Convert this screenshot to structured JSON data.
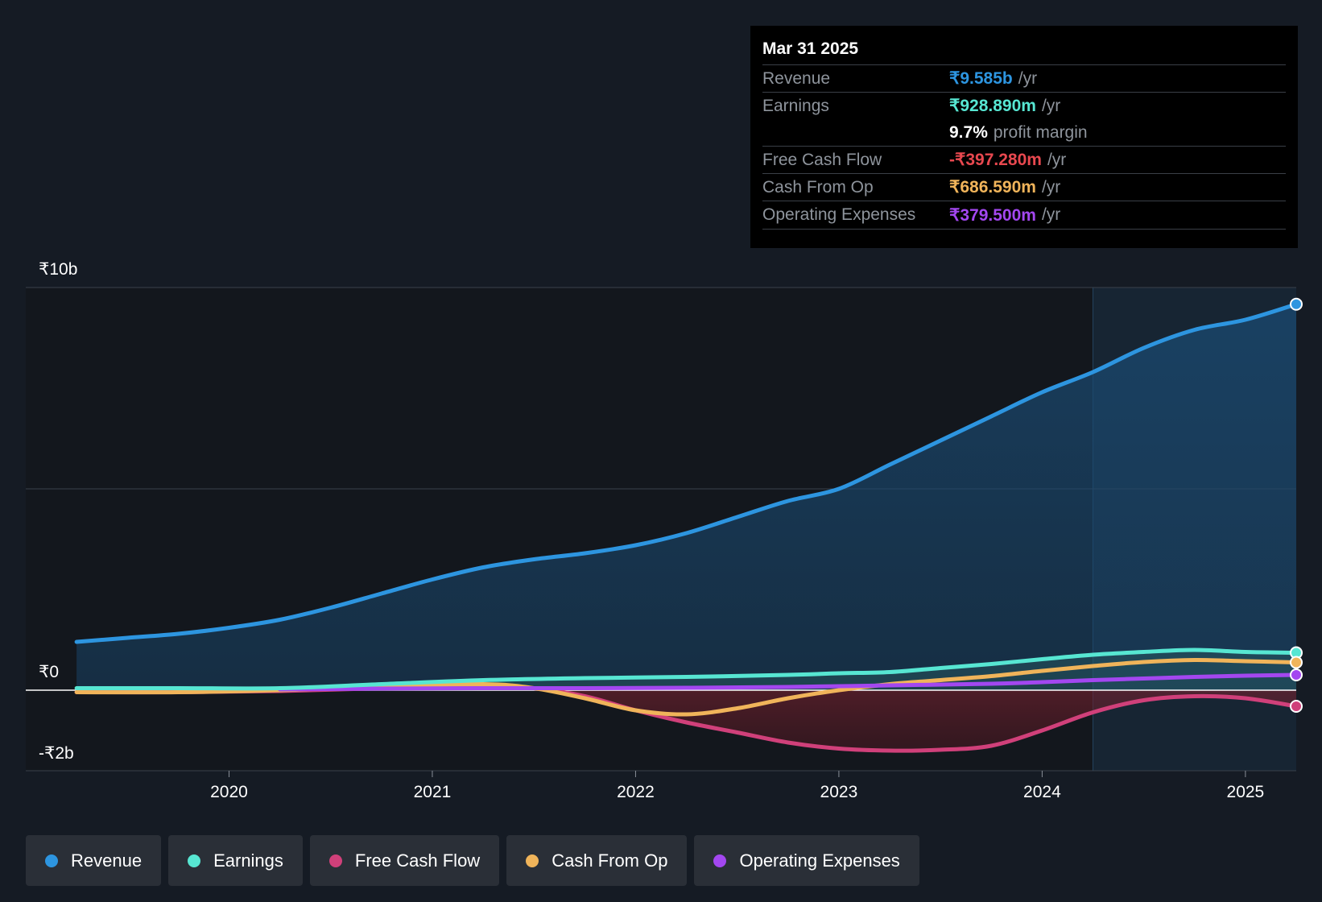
{
  "tooltip": {
    "date": "Mar 31 2025",
    "rows": [
      {
        "label": "Revenue",
        "value": "₹9.585b",
        "unit": "/yr",
        "color": "#2d95e0"
      },
      {
        "label": "Earnings",
        "value": "₹928.890m",
        "unit": "/yr",
        "color": "#57e6d2"
      },
      {
        "label": "",
        "value": "9.7%",
        "unit": "profit margin",
        "color": "#ffffff"
      },
      {
        "label": "Free Cash Flow",
        "value": "-₹397.280m",
        "unit": "/yr",
        "color": "#e8484f"
      },
      {
        "label": "Cash From Op",
        "value": "₹686.590m",
        "unit": "/yr",
        "color": "#f0b45a"
      },
      {
        "label": "Operating Expenses",
        "value": "₹379.500m",
        "unit": "/yr",
        "color": "#a347f0"
      }
    ]
  },
  "legend": [
    {
      "label": "Revenue",
      "color": "#2d95e0"
    },
    {
      "label": "Earnings",
      "color": "#57e6d2"
    },
    {
      "label": "Free Cash Flow",
      "color": "#d0407a"
    },
    {
      "label": "Cash From Op",
      "color": "#f0b45a"
    },
    {
      "label": "Operating Expenses",
      "color": "#a347f0"
    }
  ],
  "chart_data": {
    "type": "line",
    "y_unit": "₹ billion",
    "ylim": [
      -2,
      10
    ],
    "xlim": [
      2019.0,
      2025.25
    ],
    "y_tick_labels": [
      {
        "value": 10,
        "label": "₹10b"
      },
      {
        "value": 0,
        "label": "₹0"
      },
      {
        "value": -2,
        "label": "-₹2b"
      }
    ],
    "x_ticks": [
      2020,
      2021,
      2022,
      2023,
      2024,
      2025
    ],
    "x_tick_labels": [
      "2020",
      "2021",
      "2022",
      "2023",
      "2024",
      "2025"
    ],
    "grid": true,
    "highlight_start": 2024.25,
    "series": [
      {
        "name": "Revenue",
        "color": "#2d95e0",
        "area": true,
        "points": [
          [
            2019.25,
            1.2
          ],
          [
            2019.5,
            1.3
          ],
          [
            2019.75,
            1.4
          ],
          [
            2020.0,
            1.55
          ],
          [
            2020.25,
            1.75
          ],
          [
            2020.5,
            2.05
          ],
          [
            2020.75,
            2.4
          ],
          [
            2021.0,
            2.75
          ],
          [
            2021.25,
            3.05
          ],
          [
            2021.5,
            3.25
          ],
          [
            2021.75,
            3.4
          ],
          [
            2022.0,
            3.6
          ],
          [
            2022.25,
            3.9
          ],
          [
            2022.5,
            4.3
          ],
          [
            2022.75,
            4.7
          ],
          [
            2023.0,
            5.0
          ],
          [
            2023.25,
            5.6
          ],
          [
            2023.5,
            6.2
          ],
          [
            2023.75,
            6.8
          ],
          [
            2024.0,
            7.4
          ],
          [
            2024.25,
            7.9
          ],
          [
            2024.5,
            8.5
          ],
          [
            2024.75,
            8.95
          ],
          [
            2025.0,
            9.2
          ],
          [
            2025.25,
            9.585
          ]
        ]
      },
      {
        "name": "Earnings",
        "color": "#57e6d2",
        "points": [
          [
            2019.25,
            0.05
          ],
          [
            2019.75,
            0.05
          ],
          [
            2020.25,
            0.05
          ],
          [
            2020.75,
            0.15
          ],
          [
            2021.25,
            0.25
          ],
          [
            2021.75,
            0.3
          ],
          [
            2022.25,
            0.33
          ],
          [
            2022.75,
            0.38
          ],
          [
            2023.0,
            0.42
          ],
          [
            2023.25,
            0.45
          ],
          [
            2023.5,
            0.55
          ],
          [
            2023.75,
            0.65
          ],
          [
            2024.0,
            0.77
          ],
          [
            2024.25,
            0.88
          ],
          [
            2024.5,
            0.95
          ],
          [
            2024.75,
            1.0
          ],
          [
            2025.0,
            0.95
          ],
          [
            2025.25,
            0.93
          ]
        ]
      },
      {
        "name": "Free Cash Flow",
        "color": "#d0407a",
        "area": true,
        "points": [
          [
            2019.25,
            -0.05
          ],
          [
            2019.75,
            -0.05
          ],
          [
            2020.25,
            -0.02
          ],
          [
            2020.75,
            0.05
          ],
          [
            2021.25,
            0.1
          ],
          [
            2021.5,
            0.05
          ],
          [
            2021.75,
            -0.15
          ],
          [
            2022.0,
            -0.5
          ],
          [
            2022.25,
            -0.8
          ],
          [
            2022.5,
            -1.05
          ],
          [
            2022.75,
            -1.3
          ],
          [
            2023.0,
            -1.45
          ],
          [
            2023.25,
            -1.5
          ],
          [
            2023.5,
            -1.48
          ],
          [
            2023.75,
            -1.38
          ],
          [
            2024.0,
            -1.0
          ],
          [
            2024.25,
            -0.55
          ],
          [
            2024.5,
            -0.25
          ],
          [
            2024.75,
            -0.15
          ],
          [
            2025.0,
            -0.2
          ],
          [
            2025.25,
            -0.4
          ]
        ]
      },
      {
        "name": "Cash From Op",
        "color": "#f0b45a",
        "area": true,
        "points": [
          [
            2019.25,
            -0.05
          ],
          [
            2019.75,
            -0.05
          ],
          [
            2020.25,
            0.0
          ],
          [
            2020.75,
            0.1
          ],
          [
            2021.25,
            0.15
          ],
          [
            2021.5,
            0.05
          ],
          [
            2021.75,
            -0.2
          ],
          [
            2022.0,
            -0.5
          ],
          [
            2022.25,
            -0.6
          ],
          [
            2022.5,
            -0.45
          ],
          [
            2022.75,
            -0.2
          ],
          [
            2023.0,
            0.0
          ],
          [
            2023.25,
            0.15
          ],
          [
            2023.5,
            0.25
          ],
          [
            2023.75,
            0.35
          ],
          [
            2024.0,
            0.48
          ],
          [
            2024.25,
            0.6
          ],
          [
            2024.5,
            0.7
          ],
          [
            2024.75,
            0.75
          ],
          [
            2025.0,
            0.72
          ],
          [
            2025.25,
            0.69
          ]
        ]
      },
      {
        "name": "Operating Expenses",
        "color": "#a347f0",
        "points": [
          [
            2020.25,
            0.02
          ],
          [
            2020.75,
            0.04
          ],
          [
            2021.25,
            0.05
          ],
          [
            2021.75,
            0.05
          ],
          [
            2022.25,
            0.06
          ],
          [
            2022.75,
            0.08
          ],
          [
            2023.25,
            0.12
          ],
          [
            2023.75,
            0.16
          ],
          [
            2024.0,
            0.2
          ],
          [
            2024.25,
            0.25
          ],
          [
            2024.5,
            0.29
          ],
          [
            2024.75,
            0.33
          ],
          [
            2025.0,
            0.36
          ],
          [
            2025.25,
            0.38
          ]
        ]
      }
    ]
  }
}
